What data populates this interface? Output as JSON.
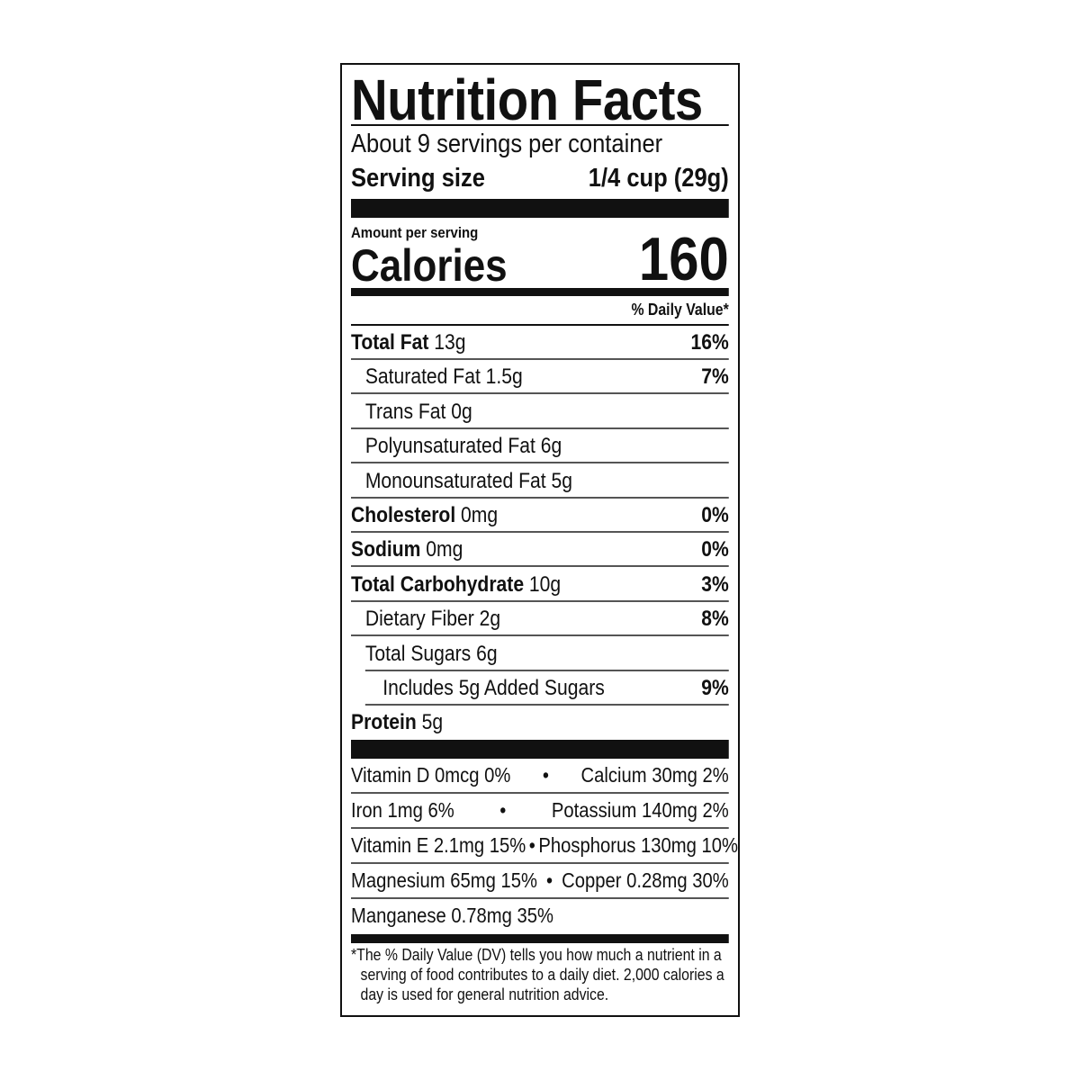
{
  "title": "Nutrition Facts",
  "servings_per_container": "About 9 servings per container",
  "serving_size": {
    "label": "Serving size",
    "value": "1/4 cup (29g)"
  },
  "amount_per_serving": "Amount per serving",
  "calories": {
    "label": "Calories",
    "value": "160"
  },
  "daily_value_header": "% Daily Value*",
  "nutrients": [
    {
      "name": "Total Fat",
      "amount": "13g",
      "dv": "16%",
      "bold": true,
      "indent": 0
    },
    {
      "name": "Saturated Fat",
      "amount": "1.5g",
      "dv": "7%",
      "bold": false,
      "indent": 1
    },
    {
      "name": "Trans Fat",
      "amount": "0g",
      "dv": "",
      "bold": false,
      "indent": 1
    },
    {
      "name": "Polyunsaturated Fat",
      "amount": "6g",
      "dv": "",
      "bold": false,
      "indent": 1
    },
    {
      "name": "Monounsaturated Fat",
      "amount": "5g",
      "dv": "",
      "bold": false,
      "indent": 1
    },
    {
      "name": "Cholesterol",
      "amount": "0mg",
      "dv": "0%",
      "bold": true,
      "indent": 0
    },
    {
      "name": "Sodium",
      "amount": "0mg",
      "dv": "0%",
      "bold": true,
      "indent": 0
    },
    {
      "name": "Total Carbohydrate",
      "amount": "10g",
      "dv": "3%",
      "bold": true,
      "indent": 0
    },
    {
      "name": "Dietary Fiber",
      "amount": "2g",
      "dv": "8%",
      "bold": false,
      "indent": 1
    },
    {
      "name": "Total Sugars",
      "amount": "6g",
      "dv": "",
      "bold": false,
      "indent": 1
    },
    {
      "name": "Includes 5g Added Sugars",
      "amount": "",
      "dv": "9%",
      "bold": false,
      "indent": 2
    },
    {
      "name": "Protein",
      "amount": "5g",
      "dv": "",
      "bold": true,
      "indent": 0
    }
  ],
  "vitamins": [
    {
      "left": "Vitamin D 0mcg 0%",
      "right": "Calcium 30mg 2%"
    },
    {
      "left": "Iron 1mg 6%",
      "right": "Potassium 140mg 2%"
    },
    {
      "left": "Vitamin E 2.1mg 15%",
      "right": "Phosphorus 130mg 10%"
    },
    {
      "left": "Magnesium 65mg 15%",
      "right": "Copper 0.28mg 30%"
    },
    {
      "left": "Manganese 0.78mg 35%",
      "right": ""
    }
  ],
  "bullet": "•",
  "footnote": "*The % Daily Value (DV) tells you how much a nutrient in a serving of food contributes to a daily diet. 2,000 calories a day is used for general nutrition advice."
}
